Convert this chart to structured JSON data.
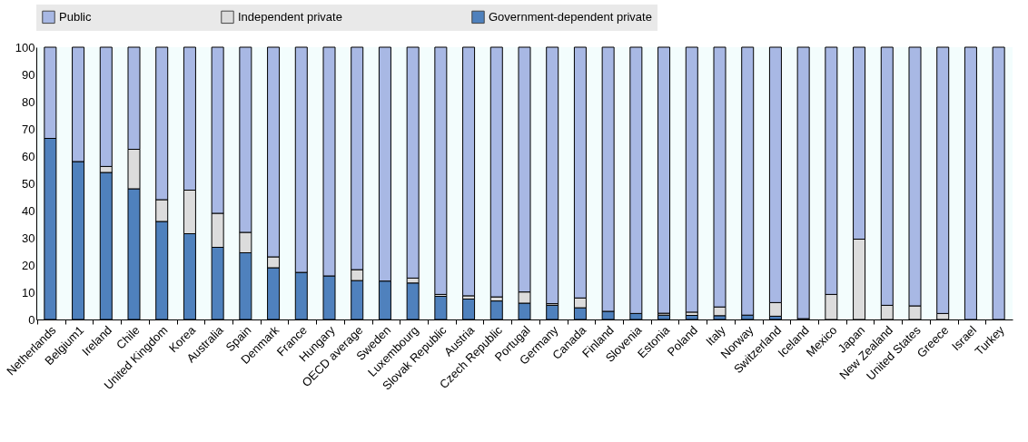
{
  "chart_data": {
    "type": "bar",
    "stacked": true,
    "categories": [
      "Netherlands",
      "Belgium1",
      "Ireland",
      "Chile",
      "United Kingdom",
      "Korea",
      "Australia",
      "Spain",
      "Denmark",
      "France",
      "Hungary",
      "OECD average",
      "Sweden",
      "Luxembourg",
      "Slovak Republic",
      "Austria",
      "Czech Republic",
      "Portugal",
      "Germany",
      "Canada",
      "Finland",
      "Slovenia",
      "Estonia",
      "Poland",
      "Italy",
      "Norway",
      "Switzerland",
      "Iceland",
      "Mexico",
      "Japan",
      "New Zealand",
      "United States",
      "Greece",
      "Israel",
      "Turkey"
    ],
    "series": [
      {
        "name": "Government-dependent private",
        "color": "#4f81bd",
        "values": [
          66.5,
          58,
          54,
          48,
          36,
          31.5,
          26.5,
          24.5,
          19,
          17.3,
          16,
          14.3,
          14.1,
          13.4,
          8.5,
          7.5,
          6.8,
          6,
          5.2,
          4.3,
          3,
          2.2,
          1.6,
          1.5,
          1.4,
          1.6,
          1.2,
          0.3,
          0,
          0,
          0,
          0,
          0,
          0,
          0
        ]
      },
      {
        "name": "Independent private",
        "color": "#dcdcdc",
        "values": [
          0,
          0,
          2.2,
          14.5,
          8,
          16,
          12.5,
          7.5,
          4,
          0,
          0,
          4,
          0,
          1.8,
          0.7,
          1.2,
          1.5,
          4.1,
          0.6,
          3.6,
          0,
          0,
          0.7,
          1.2,
          3.2,
          0,
          5,
          0,
          9.2,
          29.5,
          5.2,
          5,
          2.2,
          0,
          0
        ]
      },
      {
        "name": "Public",
        "color": "#a8b8e4",
        "values": [
          33.5,
          42,
          43.8,
          37.5,
          56,
          52.5,
          61,
          68,
          77,
          82.7,
          84,
          81.7,
          85.9,
          84.8,
          90.8,
          91.3,
          91.7,
          89.9,
          94.2,
          92.1,
          97,
          97.8,
          97.7,
          97.3,
          95.4,
          98.4,
          93.8,
          99.7,
          90.8,
          70.5,
          94.8,
          95,
          97.8,
          100,
          100
        ]
      }
    ],
    "ylim": [
      0,
      100
    ],
    "yticks": [
      0,
      10,
      20,
      30,
      40,
      50,
      60,
      70,
      80,
      90,
      100
    ],
    "grid": false,
    "legend": "top"
  }
}
